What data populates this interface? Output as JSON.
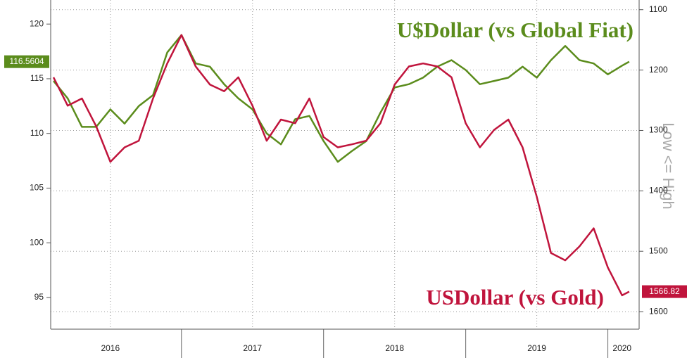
{
  "chart_data": {
    "type": "line",
    "axis_title_y2": "Low <= High",
    "x": [
      2016.1,
      2016.2,
      2016.3,
      2016.4,
      2016.5,
      2016.6,
      2016.7,
      2016.8,
      2016.9,
      2017.0,
      2017.1,
      2017.2,
      2017.3,
      2017.4,
      2017.5,
      2017.6,
      2017.7,
      2017.8,
      2017.9,
      2018.0,
      2018.1,
      2018.2,
      2018.3,
      2018.4,
      2018.5,
      2018.6,
      2018.7,
      2018.8,
      2018.9,
      2019.0,
      2019.1,
      2019.2,
      2019.3,
      2019.4,
      2019.5,
      2019.6,
      2019.7,
      2019.8,
      2019.9,
      2020.0,
      2020.1,
      2020.15
    ],
    "series": [
      {
        "name": "U$Dollar (vs Global Fiat)",
        "color": "#5b8c1c",
        "axis": "y",
        "values": [
          114.8,
          113.2,
          110.6,
          110.6,
          112.2,
          110.9,
          112.5,
          113.5,
          117.4,
          119.0,
          116.4,
          116.1,
          114.5,
          113.2,
          112.2,
          110.0,
          109.0,
          111.3,
          111.6,
          109.3,
          107.4,
          108.4,
          109.3,
          111.9,
          114.2,
          114.5,
          115.1,
          116.1,
          116.7,
          115.8,
          114.5,
          114.8,
          115.1,
          116.1,
          115.1,
          116.7,
          118.0,
          116.7,
          116.4,
          115.4,
          116.2,
          116.5604
        ]
      },
      {
        "name": "USDollar (vs Gold)",
        "color": "#c0143c",
        "axis": "y2",
        "values": [
          1212,
          1259,
          1247,
          1293,
          1352,
          1328,
          1317,
          1247,
          1189,
          1142,
          1194,
          1224,
          1235,
          1212,
          1259,
          1317,
          1282,
          1288,
          1247,
          1311,
          1328,
          1323,
          1317,
          1288,
          1224,
          1194,
          1189,
          1194,
          1212,
          1288,
          1328,
          1299,
          1282,
          1328,
          1410,
          1503,
          1515,
          1492,
          1462,
          1527,
          1573,
          1566.82
        ]
      }
    ],
    "xlim": [
      2016.08,
      2020.22
    ],
    "xticks": [
      {
        "value": 2016.5,
        "label": "2016"
      },
      {
        "value": 2017.5,
        "label": "2017"
      },
      {
        "value": 2018.5,
        "label": "2018"
      },
      {
        "value": 2019.5,
        "label": "2019"
      },
      {
        "value": 2020.1,
        "label": "2020"
      }
    ],
    "x_separators": [
      2017,
      2018,
      2019,
      2020
    ],
    "ylim": [
      92.1,
      122.2
    ],
    "yticks": [
      95,
      100,
      105,
      110,
      115,
      120
    ],
    "y2lim": [
      1629,
      1084
    ],
    "y2ticks": [
      1100,
      1200,
      1300,
      1400,
      1500,
      1600
    ],
    "grid": true
  }
}
